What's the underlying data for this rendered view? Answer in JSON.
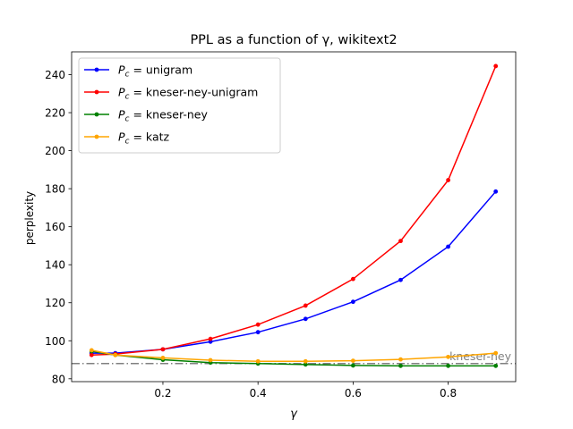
{
  "chart_data": {
    "type": "line",
    "title": "PPL as a function of γ, wikitext2",
    "xlabel": "γ",
    "ylabel": "perplexity",
    "xlim": [
      0.008,
      0.942
    ],
    "ylim": [
      78.5,
      252
    ],
    "xticks": [
      0.2,
      0.4,
      0.6,
      0.8
    ],
    "xtick_labels": [
      "0.2",
      "0.4",
      "0.6",
      "0.8"
    ],
    "yticks": [
      80,
      100,
      120,
      140,
      160,
      180,
      200,
      220,
      240
    ],
    "ytick_labels": [
      "80",
      "100",
      "120",
      "140",
      "160",
      "180",
      "200",
      "220",
      "240"
    ],
    "grid": false,
    "legend_position": "top-left",
    "x": [
      0.05,
      0.1,
      0.2,
      0.3,
      0.4,
      0.5,
      0.6,
      0.7,
      0.8,
      0.9
    ],
    "series": [
      {
        "name_prefix": "P",
        "name_subscript": "c",
        "name_suffix": " = unigram",
        "color": "#0000ff",
        "values": [
          93.5,
          93.5,
          95.5,
          99.5,
          104.5,
          111.5,
          120.5,
          132.0,
          149.5,
          178.5
        ]
      },
      {
        "name_prefix": "P",
        "name_subscript": "c",
        "name_suffix": " = kneser-ney-unigram",
        "color": "#ff0000",
        "values": [
          92.5,
          93.0,
          95.5,
          101.0,
          108.5,
          118.5,
          132.5,
          152.5,
          184.5,
          244.5
        ]
      },
      {
        "name_prefix": "P",
        "name_subscript": "c",
        "name_suffix": " = kneser-ney",
        "color": "#008000",
        "values": [
          94.5,
          92.5,
          90.0,
          88.5,
          88.0,
          87.5,
          87.0,
          86.8,
          86.8,
          86.8
        ]
      },
      {
        "name_prefix": "P",
        "name_subscript": "c",
        "name_suffix": " = katz",
        "color": "#ffa500",
        "values": [
          95.0,
          92.5,
          91.0,
          89.8,
          89.2,
          89.2,
          89.5,
          90.2,
          91.5,
          93.5
        ]
      }
    ],
    "reference_line": {
      "label": "kneser-ney",
      "y": 88.0,
      "color": "#808080",
      "style": "dash-dot"
    }
  }
}
